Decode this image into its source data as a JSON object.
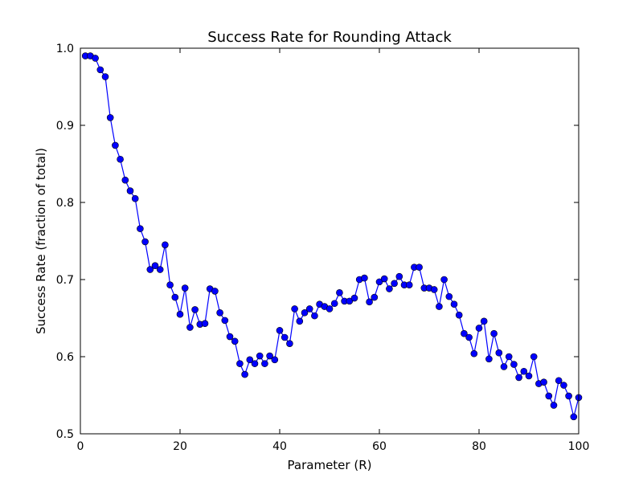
{
  "chart_data": {
    "type": "line",
    "title": "Success Rate for Rounding Attack",
    "xlabel": "Parameter (R)",
    "ylabel": "Success Rate (fraction of total)",
    "xlim": [
      0,
      100
    ],
    "ylim": [
      0.5,
      1.0
    ],
    "xticks": [
      0,
      20,
      40,
      60,
      80,
      100
    ],
    "xtick_labels": [
      "0",
      "20",
      "40",
      "60",
      "80",
      "100"
    ],
    "yticks": [
      0.5,
      0.6,
      0.7,
      0.8,
      0.9,
      1.0
    ],
    "ytick_labels": [
      "0.5",
      "0.6",
      "0.7",
      "0.8",
      "0.9",
      "1.0"
    ],
    "grid": false,
    "series": [
      {
        "color": "#0000ff",
        "marker": "circle",
        "x": [
          1,
          2,
          3,
          4,
          5,
          6,
          7,
          8,
          9,
          10,
          11,
          12,
          13,
          14,
          15,
          16,
          17,
          18,
          19,
          20,
          21,
          22,
          23,
          24,
          25,
          26,
          27,
          28,
          29,
          30,
          31,
          32,
          33,
          34,
          35,
          36,
          37,
          38,
          39,
          40,
          41,
          42,
          43,
          44,
          45,
          46,
          47,
          48,
          49,
          50,
          51,
          52,
          53,
          54,
          55,
          56,
          57,
          58,
          59,
          60,
          61,
          62,
          63,
          64,
          65,
          66,
          67,
          68,
          69,
          70,
          71,
          72,
          73,
          74,
          75,
          76,
          77,
          78,
          79,
          80,
          81,
          82,
          83,
          84,
          85,
          86,
          87,
          88,
          89,
          90,
          91,
          92,
          93,
          94,
          95,
          96,
          97,
          98,
          99,
          100
        ],
        "y": [
          0.99,
          0.99,
          0.987,
          0.972,
          0.963,
          0.91,
          0.874,
          0.856,
          0.829,
          0.815,
          0.805,
          0.766,
          0.749,
          0.713,
          0.718,
          0.713,
          0.745,
          0.693,
          0.677,
          0.655,
          0.689,
          0.638,
          0.661,
          0.642,
          0.643,
          0.688,
          0.685,
          0.657,
          0.647,
          0.626,
          0.62,
          0.591,
          0.577,
          0.596,
          0.591,
          0.601,
          0.591,
          0.601,
          0.596,
          0.634,
          0.625,
          0.617,
          0.662,
          0.646,
          0.657,
          0.662,
          0.653,
          0.668,
          0.665,
          0.662,
          0.669,
          0.683,
          0.672,
          0.672,
          0.676,
          0.7,
          0.702,
          0.671,
          0.677,
          0.697,
          0.701,
          0.688,
          0.695,
          0.704,
          0.693,
          0.693,
          0.716,
          0.716,
          0.689,
          0.689,
          0.687,
          0.665,
          0.7,
          0.678,
          0.668,
          0.654,
          0.63,
          0.625,
          0.604,
          0.637,
          0.646,
          0.597,
          0.63,
          0.605,
          0.587,
          0.6,
          0.59,
          0.573,
          0.581,
          0.575,
          0.6,
          0.565,
          0.567,
          0.549,
          0.537,
          0.569,
          0.563,
          0.549,
          0.522,
          0.547
        ]
      }
    ]
  }
}
